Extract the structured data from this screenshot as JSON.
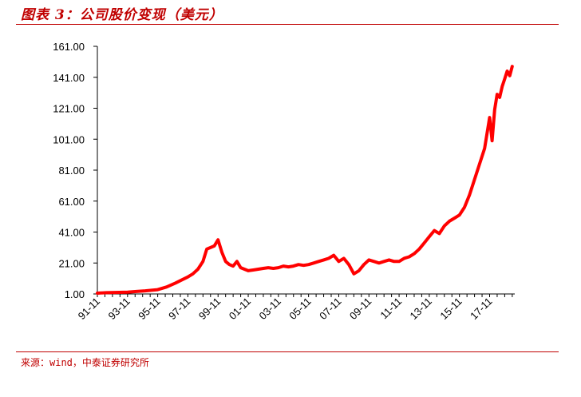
{
  "header": {
    "title": "图表 3：公司股价变现（美元）"
  },
  "footer": {
    "source": "来源：wind，中泰证券研究所"
  },
  "colors": {
    "accent": "#c00000",
    "line": "#ff0000",
    "axis": "#000000"
  },
  "chart_data": {
    "type": "line",
    "title": "",
    "xlabel": "",
    "ylabel": "",
    "ylim": [
      1.0,
      161.0
    ],
    "y_ticks": [
      "1.00",
      "21.00",
      "41.00",
      "61.00",
      "81.00",
      "101.00",
      "121.00",
      "141.00",
      "161.00"
    ],
    "x_ticks": [
      "91-11",
      "93-11",
      "95-11",
      "97-11",
      "99-11",
      "01-11",
      "03-11",
      "05-11",
      "07-11",
      "09-11",
      "11-11",
      "13-11",
      "15-11",
      "17-11"
    ],
    "grid": false,
    "legend": "none",
    "series": [
      {
        "x": [
          "1991-11",
          "1992-06",
          "1993-01",
          "1993-11",
          "1994-06",
          "1995-01",
          "1995-11",
          "1996-06",
          "1997-01",
          "1997-06",
          "1997-11",
          "1998-03",
          "1998-07",
          "1998-11",
          "1999-02",
          "1999-05",
          "1999-08",
          "1999-11",
          "2000-02",
          "2000-05",
          "2000-08",
          "2000-11",
          "2001-02",
          "2001-05",
          "2001-08",
          "2001-11",
          "2002-03",
          "2002-07",
          "2002-11",
          "2003-03",
          "2003-07",
          "2003-11",
          "2004-03",
          "2004-07",
          "2004-11",
          "2005-03",
          "2005-07",
          "2005-11",
          "2006-03",
          "2006-07",
          "2006-11",
          "2007-03",
          "2007-07",
          "2007-11",
          "2008-03",
          "2008-07",
          "2008-11",
          "2009-03",
          "2009-07",
          "2009-11",
          "2010-03",
          "2010-07",
          "2010-11",
          "2011-03",
          "2011-07",
          "2011-11",
          "2012-03",
          "2012-07",
          "2012-11",
          "2013-03",
          "2013-07",
          "2013-11",
          "2014-03",
          "2014-07",
          "2014-11",
          "2015-03",
          "2015-07",
          "2015-11",
          "2016-03",
          "2016-07",
          "2016-11",
          "2017-03",
          "2017-07",
          "2017-11",
          "2018-01",
          "2018-03",
          "2018-05",
          "2018-07",
          "2018-09",
          "2018-11",
          "2019-01",
          "2019-03",
          "2019-05"
        ],
        "values": [
          1.5,
          1.8,
          2.0,
          2.2,
          2.6,
          3.0,
          3.8,
          5.5,
          8.0,
          10.0,
          12.0,
          14.0,
          17.0,
          22.0,
          30.0,
          31.0,
          32.0,
          36.0,
          28.0,
          22.0,
          20.0,
          19.0,
          22.0,
          18.0,
          17.0,
          16.0,
          16.5,
          17.0,
          17.5,
          18.0,
          17.5,
          18.0,
          19.0,
          18.5,
          19.0,
          20.0,
          19.5,
          20.0,
          21.0,
          22.0,
          23.0,
          24.0,
          26.0,
          22.0,
          24.0,
          20.0,
          14.0,
          16.0,
          20.0,
          23.0,
          22.0,
          21.0,
          22.0,
          23.0,
          22.0,
          22.0,
          24.0,
          25.0,
          27.0,
          30.0,
          34.0,
          38.0,
          42.0,
          40.0,
          45.0,
          48.0,
          50.0,
          52.0,
          57.0,
          65.0,
          75.0,
          85.0,
          95.0,
          115.0,
          100.0,
          120.0,
          130.0,
          128.0,
          135.0,
          140.0,
          145.0,
          142.0,
          148.0
        ]
      }
    ]
  }
}
